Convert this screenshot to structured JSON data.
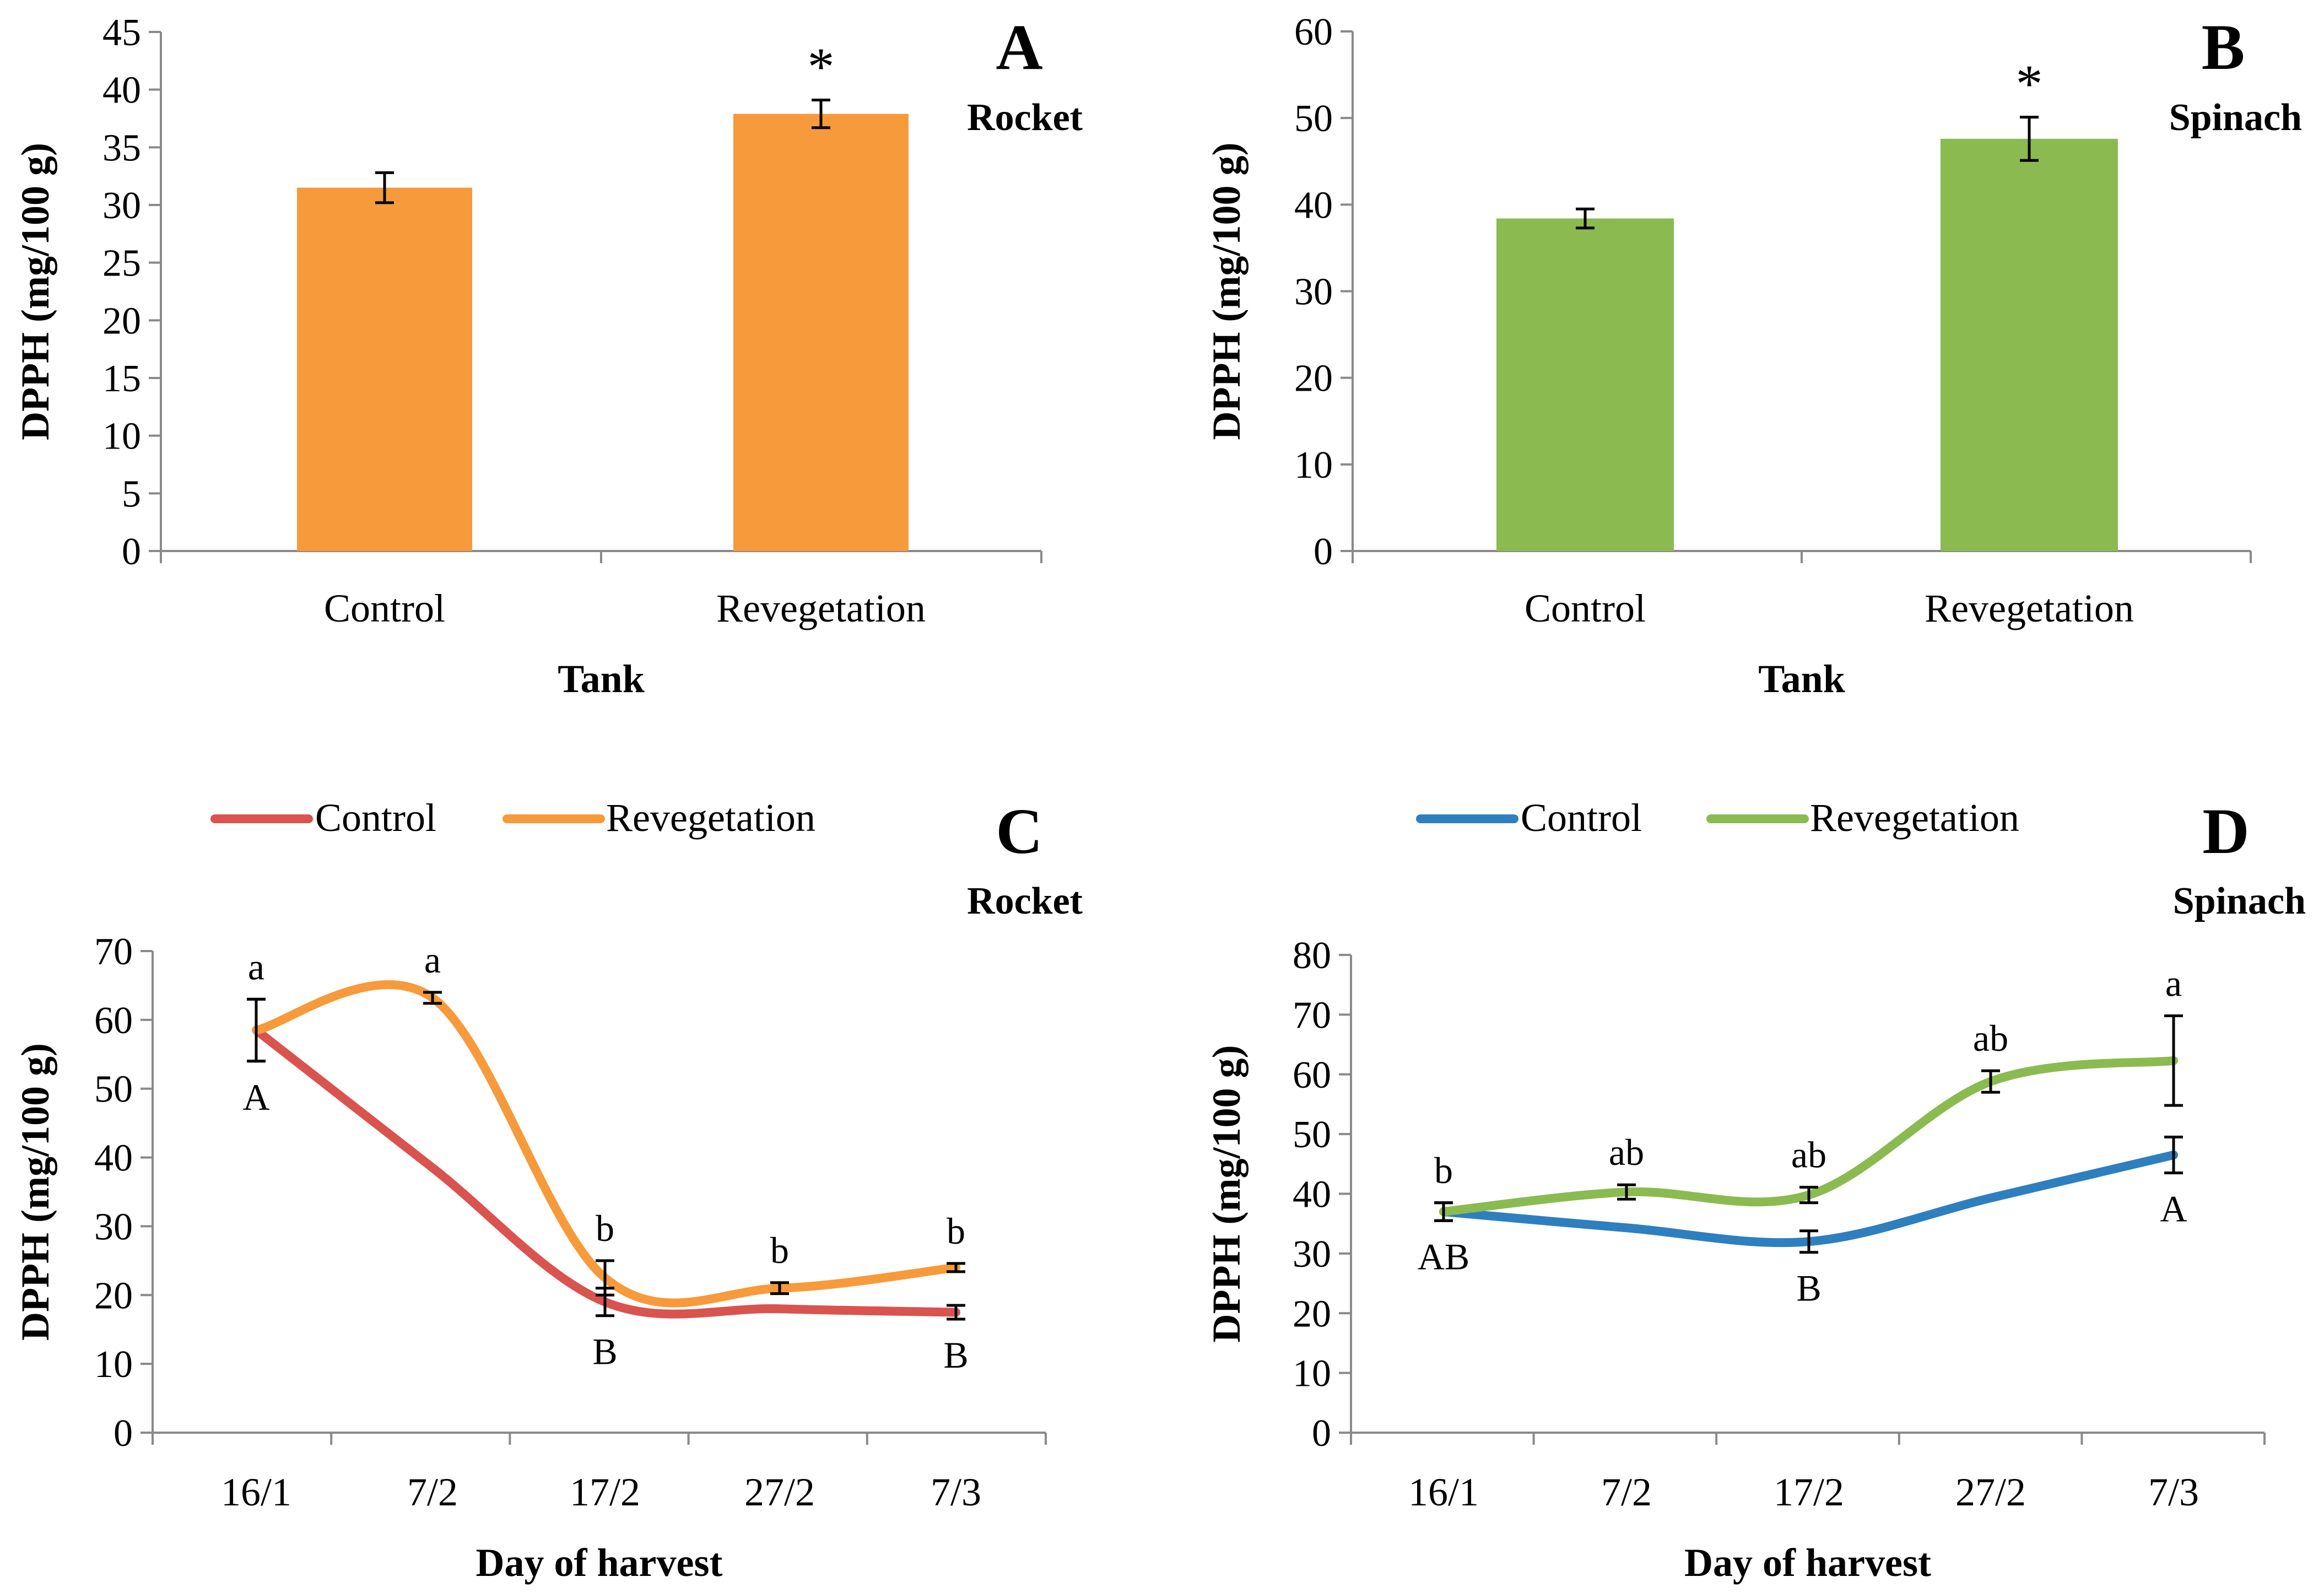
{
  "chart_data": [
    {
      "type": "bar",
      "panel": "A",
      "species": "Rocket",
      "categories": [
        "Control",
        "Revegetation"
      ],
      "values": [
        31.5,
        37.9
      ],
      "errors": [
        1.3,
        1.2
      ],
      "annotations": [
        "",
        "*"
      ],
      "color": "#F79A3B",
      "xlabel": "Tank",
      "ylabel": "DPPH (mg/100 g)",
      "ylim": [
        0,
        45
      ],
      "yticks": [
        "0",
        "5",
        "10",
        "15",
        "20",
        "25",
        "30",
        "35",
        "40",
        "45"
      ]
    },
    {
      "type": "bar",
      "panel": "B",
      "species": "Spinach",
      "categories": [
        "Control",
        "Revegetation"
      ],
      "values": [
        38.4,
        47.6
      ],
      "errors": [
        1.1,
        2.5
      ],
      "annotations": [
        "",
        "*"
      ],
      "color": "#8BBB50",
      "xlabel": "Tank",
      "ylabel": "DPPH (mg/100 g)",
      "ylim": [
        0,
        60
      ],
      "yticks": [
        "0",
        "10",
        "20",
        "30",
        "40",
        "50",
        "60"
      ]
    },
    {
      "type": "line",
      "panel": "C",
      "species": "Rocket",
      "categories": [
        "16/1",
        "7/2",
        "17/2",
        "27/2",
        "7/3"
      ],
      "xlabel": "Day of harvest",
      "ylabel": "DPPH (mg/100 g)",
      "ylim": [
        0,
        70
      ],
      "yticks": [
        "0",
        "10",
        "20",
        "30",
        "40",
        "50",
        "60",
        "70"
      ],
      "series": [
        {
          "name": "Control",
          "color": "#D9534F",
          "values": [
            58.5,
            38.5,
            19.0,
            18.0,
            17.5
          ],
          "errors": [
            4.5,
            null,
            2.0,
            null,
            1.0
          ],
          "letters": [
            "A",
            "",
            "B",
            "",
            "B"
          ]
        },
        {
          "name": "Revegetation",
          "color": "#F79A3B",
          "values": [
            58.5,
            63.2,
            22.5,
            21.0,
            24.0
          ],
          "errors": [
            4.5,
            0.8,
            2.5,
            0.8,
            0.6
          ],
          "letters": [
            "a",
            "a",
            "b",
            "b",
            "b"
          ]
        }
      ]
    },
    {
      "type": "line",
      "panel": "D",
      "species": "Spinach",
      "categories": [
        "16/1",
        "7/2",
        "17/2",
        "27/2",
        "7/3"
      ],
      "xlabel": "Day of harvest",
      "ylabel": "DPPH (mg/100 g)",
      "ylim": [
        0,
        80
      ],
      "yticks": [
        "0",
        "10",
        "20",
        "30",
        "40",
        "50",
        "60",
        "70",
        "80"
      ],
      "series": [
        {
          "name": "Control",
          "color": "#2E7FBF",
          "values": [
            37.0,
            34.3,
            32.0,
            39.3,
            46.5
          ],
          "errors": [
            1.5,
            null,
            1.8,
            null,
            3.0
          ],
          "letters": [
            "AB",
            "",
            "B",
            "",
            "A"
          ]
        },
        {
          "name": "Revegetation",
          "color": "#8BBB50",
          "values": [
            37.0,
            40.3,
            39.8,
            58.8,
            62.3
          ],
          "errors": [
            1.5,
            1.2,
            1.3,
            1.8,
            7.5
          ],
          "letters": [
            "b",
            "ab",
            "ab",
            "ab",
            "a"
          ]
        }
      ]
    }
  ]
}
